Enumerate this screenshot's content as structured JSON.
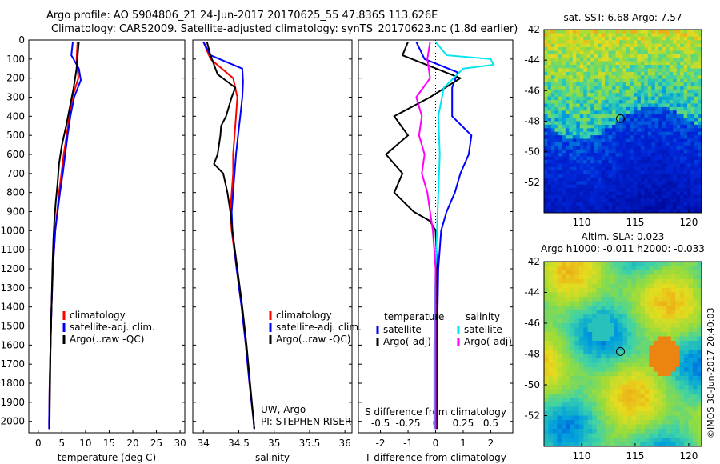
{
  "header": {
    "line1": "Argo profile: AO 5904806_21 24-Jun-2017 20170625_55 47.836S 113.626E",
    "line2": "Climatology: CARS2009. Satellite-adjusted climatology: synTS_20170623.nc (1.8d earlier)"
  },
  "colors": {
    "climatology": "#ff0000",
    "satellite": "#0000ff",
    "argo": "#000000",
    "salinity_sat": "#00e5ee",
    "salinity_argo": "#ff00ff"
  },
  "chart_data": [
    {
      "type": "line",
      "name": "temperature",
      "xlabel": "temperature (deg C)",
      "ylabel": "",
      "xlim": [
        -2,
        31
      ],
      "ylim": [
        2060,
        0
      ],
      "xticks": [
        "0",
        "5",
        "10",
        "15",
        "20",
        "25",
        "30"
      ],
      "yticks": [
        "0",
        "100",
        "200",
        "300",
        "400",
        "500",
        "600",
        "700",
        "800",
        "900",
        "1000",
        "1100",
        "1200",
        "1300",
        "1400",
        "1500",
        "1600",
        "1700",
        "1800",
        "1900",
        "2000"
      ],
      "legend": [
        "climatology",
        "satellite-adj. clim.",
        "Argo(..raw -QC)"
      ],
      "legend_placement": "lower-center",
      "series": [
        {
          "name": "climatology",
          "depth": [
            10,
            100,
            200,
            300,
            400,
            500,
            600,
            700,
            800,
            900,
            1000,
            1200,
            1400,
            1600,
            1800,
            2000,
            2040
          ],
          "values": [
            8.3,
            8.1,
            8.5,
            7.2,
            6.6,
            6.0,
            5.4,
            4.9,
            4.4,
            4.0,
            3.6,
            3.1,
            2.8,
            2.6,
            2.4,
            2.3,
            2.3
          ]
        },
        {
          "name": "satellite-adj. clim.",
          "depth": [
            10,
            80,
            150,
            210,
            300,
            400,
            500,
            600,
            700,
            800,
            900,
            1000,
            1200,
            1400,
            1600,
            1800,
            2000,
            2040
          ],
          "values": [
            7.3,
            7.0,
            8.6,
            9.0,
            7.6,
            6.8,
            6.2,
            5.7,
            5.2,
            4.6,
            4.1,
            3.6,
            3.1,
            2.8,
            2.6,
            2.4,
            2.3,
            2.3
          ]
        },
        {
          "name": "Argo(..raw -QC)",
          "depth": [
            10,
            60,
            150,
            250,
            350,
            450,
            550,
            650,
            750,
            850,
            950,
            1050,
            1200,
            1400,
            1600,
            1800,
            2000,
            2040
          ],
          "values": [
            8.6,
            8.4,
            8.1,
            7.5,
            6.7,
            5.9,
            5.0,
            4.4,
            4.1,
            3.7,
            3.4,
            3.2,
            3.0,
            2.8,
            2.6,
            2.5,
            2.4,
            2.4
          ]
        }
      ]
    },
    {
      "type": "line",
      "name": "salinity",
      "xlabel": "salinity",
      "xlim": [
        33.85,
        36.1
      ],
      "ylim": [
        2060,
        0
      ],
      "xticks": [
        "34",
        "34.5",
        "35",
        "35.5",
        "36"
      ],
      "legend": [
        "climatology",
        "satellite-adj. clim.",
        "Argo(..raw -QC)"
      ],
      "legend_placement": "lower-center",
      "annotation": [
        "UW, Argo",
        "PI: STEPHEN RISER"
      ],
      "series": [
        {
          "name": "climatology",
          "depth": [
            10,
            100,
            200,
            300,
            400,
            500,
            600,
            700,
            800,
            900,
            1000,
            1200,
            1400,
            1600,
            1800,
            2000,
            2040
          ],
          "values": [
            34.0,
            34.1,
            34.42,
            34.48,
            34.46,
            34.44,
            34.42,
            34.42,
            34.4,
            34.38,
            34.4,
            34.47,
            34.54,
            34.6,
            34.65,
            34.71,
            34.72
          ]
        },
        {
          "name": "satellite-adj. clim.",
          "depth": [
            10,
            80,
            150,
            220,
            300,
            400,
            500,
            600,
            700,
            800,
            900,
            1000,
            1200,
            1400,
            1600,
            1800,
            2000,
            2040
          ],
          "values": [
            34.0,
            34.1,
            34.55,
            34.56,
            34.55,
            34.52,
            34.49,
            34.46,
            34.44,
            34.42,
            34.4,
            34.41,
            34.47,
            34.54,
            34.6,
            34.65,
            34.71,
            34.72
          ]
        },
        {
          "name": "Argo(..raw -QC)",
          "depth": [
            10,
            80,
            180,
            250,
            300,
            400,
            450,
            500,
            600,
            650,
            700,
            800,
            900,
            1000,
            1200,
            1400,
            1600,
            1800,
            2000,
            2040
          ],
          "values": [
            34.05,
            34.1,
            34.2,
            34.45,
            34.4,
            34.32,
            34.25,
            34.24,
            34.2,
            34.15,
            34.28,
            34.34,
            34.38,
            34.41,
            34.48,
            34.55,
            34.61,
            34.66,
            34.71,
            34.72
          ]
        }
      ]
    },
    {
      "type": "line",
      "name": "difference",
      "xlabel": "T difference from climatology",
      "xlabel_top": "S difference from climatology",
      "xlim": [
        -2.8,
        2.8
      ],
      "ylim": [
        2060,
        0
      ],
      "xticks": [
        "-2",
        "-1",
        "0",
        "1",
        "2"
      ],
      "xticks_top": [
        "-0.5",
        "-0.25",
        "0",
        "0.25",
        "0.5"
      ],
      "legend": {
        "temperature": [
          "satellite",
          "Argo(-adj)"
        ],
        "salinity": [
          "satellite",
          "Argo(-adj)"
        ]
      },
      "legend_placement": "lower",
      "series": [
        {
          "name": "temperature satellite",
          "depth": [
            10,
            100,
            170,
            250,
            400,
            500,
            600,
            700,
            800,
            900,
            1000,
            1200,
            2040
          ],
          "values": [
            -0.7,
            -0.4,
            0.8,
            0.6,
            0.6,
            1.3,
            1.2,
            0.9,
            0.7,
            0.4,
            0.2,
            0.1,
            0.0
          ]
        },
        {
          "name": "temperature Argo(-adj)",
          "depth": [
            10,
            80,
            200,
            300,
            400,
            500,
            600,
            700,
            800,
            900,
            950,
            1000,
            1200,
            2040
          ],
          "values": [
            -1.0,
            -1.2,
            0.9,
            -0.2,
            -1.5,
            -1.0,
            -1.8,
            -1.2,
            -1.5,
            -0.8,
            -0.2,
            0.0,
            0.05,
            0.05
          ]
        },
        {
          "name": "salinity satellite",
          "depth": [
            10,
            80,
            100,
            130,
            150,
            250,
            400,
            600,
            800,
            1000,
            1200,
            1600,
            2040
          ],
          "values": [
            0.0,
            0.4,
            2.0,
            2.1,
            1.0,
            0.3,
            0.1,
            0.15,
            0.1,
            0.05,
            0.0,
            -0.05,
            -0.05
          ]
        },
        {
          "name": "salinity Argo(-adj)",
          "depth": [
            10,
            100,
            200,
            300,
            400,
            500,
            600,
            700,
            800,
            900,
            1000,
            1200,
            2040
          ],
          "values": [
            -0.2,
            -0.3,
            -0.2,
            -0.7,
            -0.5,
            -0.6,
            -0.4,
            -0.5,
            -0.3,
            -0.2,
            -0.1,
            0.0,
            0.0
          ]
        }
      ]
    },
    {
      "type": "heatmap",
      "name": "sst",
      "title": "sat. SST: 6.68 Argo: 7.57",
      "xlim": [
        106.5,
        121.2
      ],
      "ylim": [
        -54,
        -42
      ],
      "xticks": [
        "110",
        "115",
        "120"
      ],
      "yticks": [
        "-42",
        "-44",
        "-46",
        "-48",
        "-50",
        "-52"
      ],
      "marker": {
        "lon": 113.626,
        "lat": -47.836
      }
    },
    {
      "type": "heatmap",
      "name": "sla",
      "title": "Altim. SLA: 0.023",
      "subtitle": "Argo h1000: -0.011 h2000: -0.033",
      "xlim": [
        106.5,
        121.2
      ],
      "ylim": [
        -54,
        -42
      ],
      "xticks": [
        "110",
        "115",
        "120"
      ],
      "yticks": [
        "-42",
        "-44",
        "-46",
        "-48",
        "-50",
        "-52"
      ],
      "marker": {
        "lon": 113.626,
        "lat": -47.836
      },
      "side_label": "©IMOS 30-Jun-2017 20:40:03"
    }
  ]
}
